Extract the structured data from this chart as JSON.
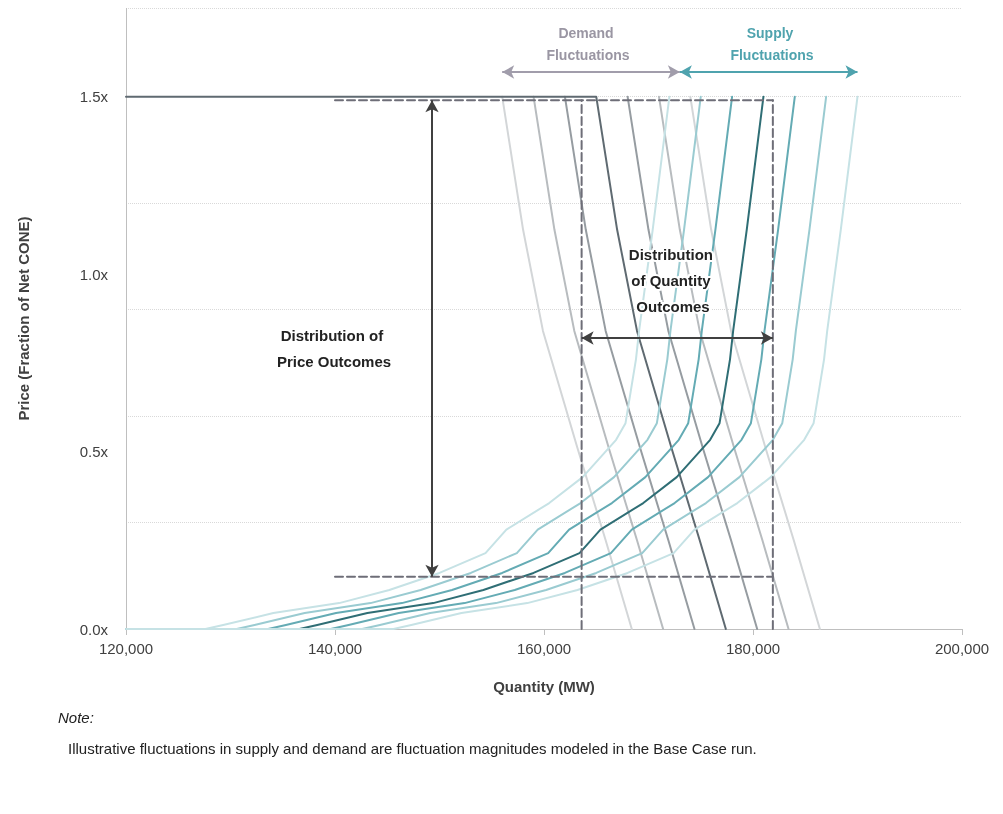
{
  "chart_data": {
    "type": "line",
    "xlabel": "Quantity (MW)",
    "ylabel": "Price (Fraction of Net CONE)",
    "xlim": [
      120000,
      200000
    ],
    "ylim": [
      0,
      1.75
    ],
    "xticks": [
      {
        "value": 120000,
        "label": "120,000"
      },
      {
        "value": 140000,
        "label": "140,000"
      },
      {
        "value": 160000,
        "label": "160,000"
      },
      {
        "value": 180000,
        "label": "180,000"
      },
      {
        "value": 200000,
        "label": "200,000"
      }
    ],
    "yticks": [
      {
        "value": 0,
        "label": "0.0x"
      },
      {
        "value": 0.5,
        "label": "0.5x"
      },
      {
        "value": 1,
        "label": "1.0x"
      },
      {
        "value": 1.5,
        "label": "1.5x"
      }
    ],
    "grid": "y",
    "marker": "none",
    "line_style": "solid",
    "series": [
      {
        "color": "#d3d6d8",
        "x": [
          156000,
          158000,
          159900,
          163200,
          165900,
          168400
        ],
        "values": [
          1.5,
          1.125,
          0.84,
          0.51,
          0.25,
          0
        ]
      },
      {
        "color": "#b8bcbf",
        "x": [
          159000,
          161000,
          162900,
          166200,
          168900,
          171400
        ],
        "values": [
          1.5,
          1.125,
          0.84,
          0.51,
          0.25,
          0
        ]
      },
      {
        "color": "#969ca1",
        "x": [
          162000,
          164000,
          165900,
          169200,
          171900,
          174400
        ],
        "values": [
          1.5,
          1.125,
          0.84,
          0.51,
          0.25,
          0
        ]
      },
      {
        "color": "#5f6a71",
        "x": [
          120000,
          165000,
          167000,
          168900,
          172200,
          174900,
          177400
        ],
        "values": [
          1.5,
          1.5,
          1.125,
          0.84,
          0.51,
          0.25,
          0
        ]
      },
      {
        "color": "#969ca1",
        "x": [
          168000,
          170000,
          171900,
          175200,
          177900,
          180400
        ],
        "values": [
          1.5,
          1.125,
          0.84,
          0.51,
          0.25,
          0
        ]
      },
      {
        "color": "#b8bcbf",
        "x": [
          171000,
          173000,
          174900,
          178200,
          180900,
          183400
        ],
        "values": [
          1.5,
          1.125,
          0.84,
          0.51,
          0.25,
          0
        ]
      },
      {
        "color": "#d3d6d8",
        "x": [
          174000,
          176000,
          177900,
          181200,
          183900,
          186400
        ],
        "values": [
          1.5,
          1.125,
          0.84,
          0.51,
          0.25,
          0
        ]
      },
      {
        "color": "#c6e2e5",
        "x": [
          120000,
          127600,
          129300,
          134100,
          140400,
          145200,
          150000,
          154400,
          156400,
          160500,
          163700,
          166900,
          167800,
          168800,
          169100,
          170400,
          172000
        ],
        "values": [
          0,
          0,
          0.011,
          0.045,
          0.073,
          0.11,
          0.158,
          0.214,
          0.28,
          0.355,
          0.428,
          0.533,
          0.58,
          0.76,
          0.84,
          1.125,
          1.5
        ]
      },
      {
        "color": "#9acbd1",
        "x": [
          120000,
          130600,
          132300,
          137100,
          143400,
          148200,
          153000,
          157400,
          159400,
          163500,
          166700,
          169900,
          170800,
          171800,
          172100,
          173400,
          175000
        ],
        "values": [
          0,
          0,
          0.011,
          0.045,
          0.073,
          0.11,
          0.158,
          0.214,
          0.28,
          0.355,
          0.428,
          0.533,
          0.58,
          0.76,
          0.84,
          1.125,
          1.5
        ]
      },
      {
        "color": "#64abb4",
        "x": [
          120000,
          133600,
          135300,
          140100,
          146400,
          151200,
          156000,
          160400,
          162400,
          166500,
          169700,
          172900,
          173800,
          174800,
          175100,
          176400,
          178000
        ],
        "values": [
          0,
          0,
          0.011,
          0.045,
          0.073,
          0.11,
          0.158,
          0.214,
          0.28,
          0.355,
          0.428,
          0.533,
          0.58,
          0.76,
          0.84,
          1.125,
          1.5
        ]
      },
      {
        "color": "#2f6e75",
        "x": [
          120000,
          136600,
          138300,
          143100,
          149400,
          154200,
          159000,
          163400,
          165400,
          169500,
          172700,
          175900,
          176800,
          177800,
          178100,
          179400,
          181000
        ],
        "values": [
          0,
          0,
          0.011,
          0.045,
          0.073,
          0.11,
          0.158,
          0.214,
          0.28,
          0.355,
          0.428,
          0.533,
          0.58,
          0.76,
          0.84,
          1.125,
          1.5
        ]
      },
      {
        "color": "#64abb4",
        "x": [
          120000,
          139600,
          141300,
          146100,
          152400,
          157200,
          162000,
          166400,
          168400,
          172500,
          175700,
          178900,
          179800,
          180800,
          181100,
          182400,
          184000
        ],
        "values": [
          0,
          0,
          0.011,
          0.045,
          0.073,
          0.11,
          0.158,
          0.214,
          0.28,
          0.355,
          0.428,
          0.533,
          0.58,
          0.76,
          0.84,
          1.125,
          1.5
        ]
      },
      {
        "color": "#9acbd1",
        "x": [
          120000,
          142600,
          144300,
          149100,
          155400,
          160200,
          165000,
          169400,
          171400,
          175500,
          178700,
          181900,
          182800,
          183800,
          184100,
          185400,
          187000
        ],
        "values": [
          0,
          0,
          0.011,
          0.045,
          0.073,
          0.11,
          0.158,
          0.214,
          0.28,
          0.355,
          0.428,
          0.533,
          0.58,
          0.76,
          0.84,
          1.125,
          1.5
        ]
      },
      {
        "color": "#c6e2e5",
        "x": [
          120000,
          145600,
          147300,
          152100,
          158400,
          163200,
          168000,
          172400,
          174400,
          178500,
          181700,
          184900,
          185800,
          186800,
          187100,
          188400,
          190000
        ],
        "values": [
          0,
          0,
          0.011,
          0.045,
          0.073,
          0.11,
          0.158,
          0.214,
          0.28,
          0.355,
          0.428,
          0.533,
          0.58,
          0.76,
          0.84,
          1.125,
          1.5
        ]
      },
      {
        "color": "#6e6e78",
        "line_style": "dashed",
        "x": [
          140000,
          181900
        ],
        "values": [
          1.49,
          1.49
        ]
      },
      {
        "color": "#6e6e78",
        "line_style": "dashed",
        "x": [
          140000,
          181900
        ],
        "values": [
          0.147,
          0.147
        ]
      },
      {
        "color": "#6e6e78",
        "line_style": "dashed",
        "x": [
          163600,
          163600
        ],
        "values": [
          0,
          1.49
        ]
      },
      {
        "color": "#6e6e78",
        "line_style": "dashed",
        "x": [
          181900,
          181900
        ],
        "values": [
          0,
          1.49
        ]
      }
    ],
    "annotations": [
      "Demand Fluctuations",
      "Supply Fluctuations",
      "Distribution of Quantity Outcomes",
      "Distribution of Price Outcomes",
      "Note:",
      "Illustrative fluctuations in supply and demand are fluctuation magnitudes modeled in the Base Case run."
    ]
  }
}
